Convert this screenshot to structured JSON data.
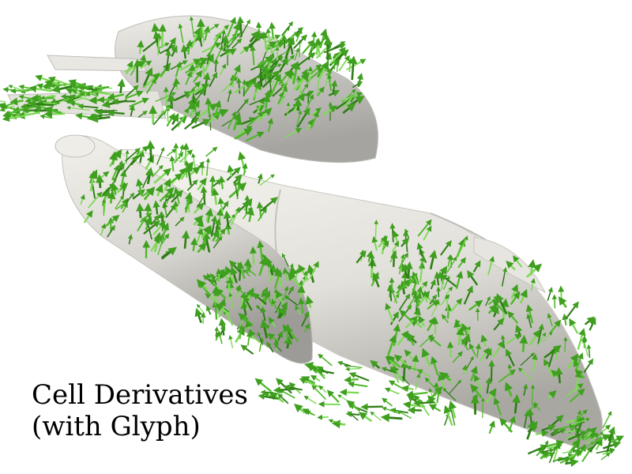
{
  "caption": {
    "line1": "Cell Derivatives",
    "line2": "(with Glyph)"
  },
  "colors": {
    "background": "#ffffff",
    "surface_light": "#f4f2ec",
    "surface_mid": "#dcdad4",
    "surface_dark": "#9a9894",
    "glyph_light": "#7ed957",
    "glyph_mid": "#4fb82b",
    "glyph_dark": "#2e7d16",
    "text": "#000000"
  },
  "icons": [
    "arrow-glyph"
  ]
}
